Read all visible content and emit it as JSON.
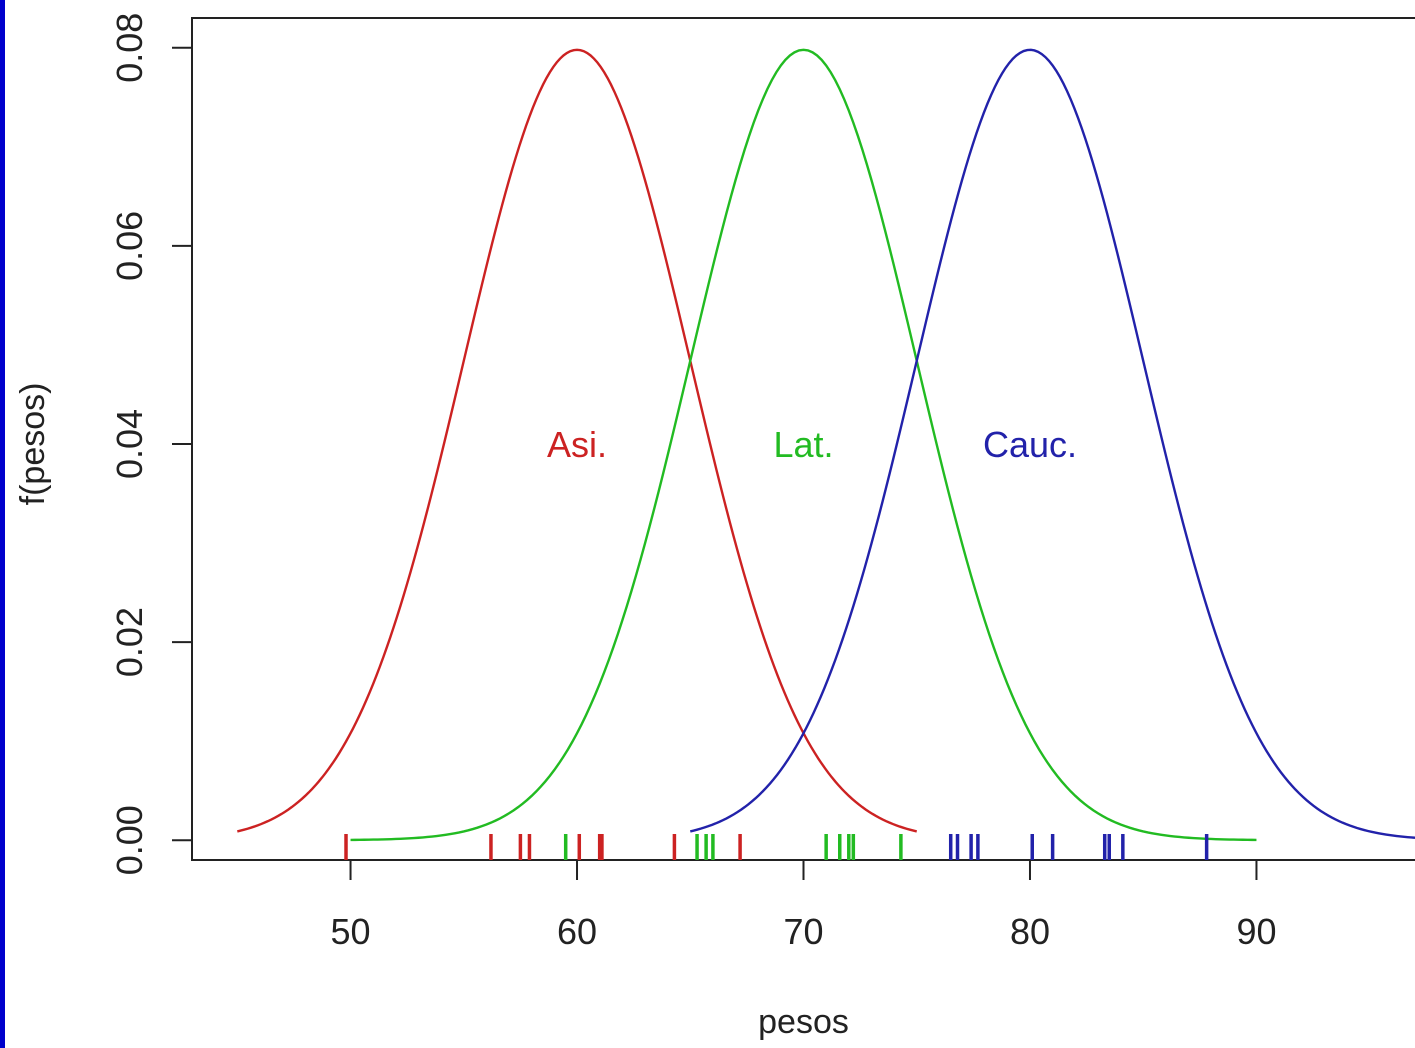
{
  "chart_data": {
    "type": "line",
    "xlabel": "pesos",
    "ylabel": "f(pesos)",
    "xlim": [
      43,
      97
    ],
    "ylim": [
      -0.002,
      0.083
    ],
    "x_ticks": [
      "50",
      "60",
      "70",
      "80",
      "90"
    ],
    "y_ticks": [
      "0.00",
      "0.02",
      "0.04",
      "0.06",
      "0.08"
    ],
    "x_tick_values": [
      50,
      60,
      70,
      80,
      90
    ],
    "y_tick_values": [
      0.0,
      0.02,
      0.04,
      0.06,
      0.08
    ],
    "grid": false,
    "series": [
      {
        "label": "Asi.",
        "color": "#cc2222",
        "mean": 60,
        "sd": 5,
        "x_range": [
          45,
          75
        ],
        "label_pos": [
          60,
          0.04
        ],
        "rug": [
          49.8,
          56.2,
          57.5,
          57.9,
          60.1,
          61.0,
          61.1,
          64.3,
          67.2
        ]
      },
      {
        "label": "Lat.",
        "color": "#22bb22",
        "mean": 70,
        "sd": 5,
        "x_range": [
          50,
          90
        ],
        "label_pos": [
          70,
          0.04
        ],
        "rug": [
          59.5,
          65.3,
          65.7,
          66.0,
          71.0,
          71.6,
          72.0,
          72.2,
          74.3
        ]
      },
      {
        "label": "Cauc.",
        "color": "#2222aa",
        "mean": 80,
        "sd": 5,
        "x_range": [
          65,
          97
        ],
        "label_pos": [
          80,
          0.04
        ],
        "rug": [
          76.5,
          76.8,
          77.4,
          77.7,
          80.1,
          81.0,
          83.3,
          83.5,
          84.1,
          87.8
        ]
      }
    ]
  },
  "frame_colors": {
    "left_edge": "#0000cc",
    "axes": "#222222"
  }
}
